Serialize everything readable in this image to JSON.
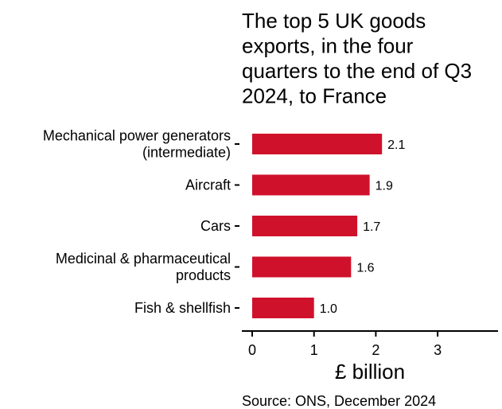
{
  "chart_data": {
    "type": "bar",
    "orientation": "horizontal",
    "title_lines": [
      "The top 5 UK goods",
      "exports, in the four",
      "quarters to the end of Q3",
      "2024, to France"
    ],
    "categories": [
      [
        "Mechanical power generators",
        "(intermediate)"
      ],
      [
        "Aircraft"
      ],
      [
        "Cars"
      ],
      [
        "Medicinal & pharmaceutical",
        "products"
      ],
      [
        "Fish & shellfish"
      ]
    ],
    "values": [
      2.1,
      1.9,
      1.7,
      1.6,
      1.0
    ],
    "value_labels": [
      "2.1",
      "1.9",
      "1.7",
      "1.6",
      "1.0"
    ],
    "xlabel": "£ billion",
    "xlim": [
      0,
      3.9
    ],
    "xticks": [
      0,
      1,
      2,
      3
    ],
    "xtick_labels": [
      "0",
      "1",
      "2",
      "3"
    ],
    "grid": false,
    "legend": "none",
    "bar_color": "#d0112b",
    "source": "Source: ONS, December 2024"
  }
}
